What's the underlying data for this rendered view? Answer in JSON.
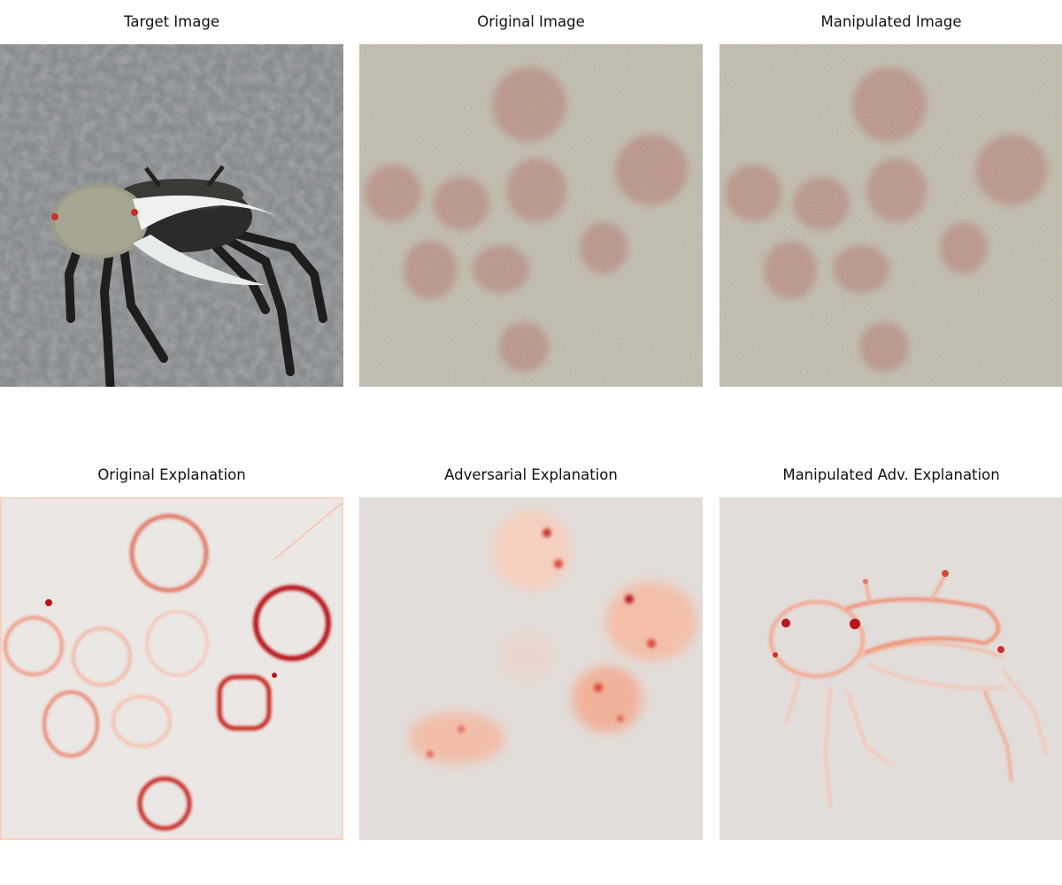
{
  "panels": [
    {
      "id": "target",
      "title": "Target Image"
    },
    {
      "id": "original",
      "title": "Original Image"
    },
    {
      "id": "manipulated",
      "title": "Manipulated Image"
    },
    {
      "id": "orig-expl",
      "title": "Original Explanation"
    },
    {
      "id": "adv-expl",
      "title": "Adversarial Explanation"
    },
    {
      "id": "manip-expl",
      "title": "Manipulated Adv. Explanation"
    }
  ],
  "colors": {
    "asphalt": "#8e9094",
    "noisy_background": "#b3ad9a",
    "berry": "#a8665d",
    "heatmap_background": "#e2ddda",
    "heatmap_low": "#f6b9a0",
    "heatmap_high": "#b8161b",
    "crab_shell": "#2a2a2a",
    "crab_claw": "#eef1f0"
  }
}
